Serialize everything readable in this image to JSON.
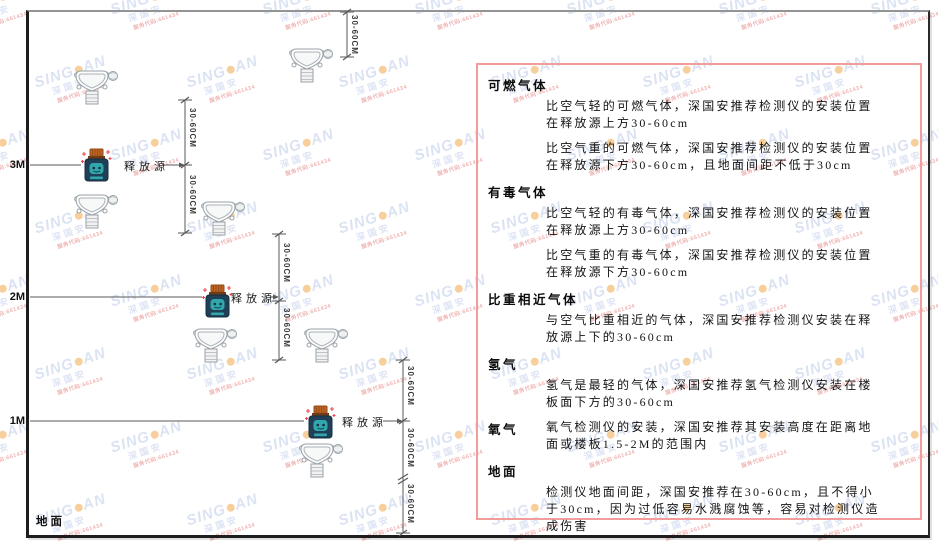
{
  "watermark": {
    "brand_left": "SING",
    "brand_right": "AN",
    "company": "深国安",
    "code": "服务代码:661434"
  },
  "icons": {
    "detector": "gas-detector-icon",
    "source": "release-source-icon",
    "sparkles": "red-sparkle-marks"
  },
  "scale": {
    "m3": "3M",
    "m2": "2M",
    "m1": "1M"
  },
  "labels": {
    "ground": "地面",
    "source": "释放源",
    "dim": "30-60CM"
  },
  "panel": {
    "sections": [
      {
        "heading": "可燃气体",
        "paragraphs": [
          "比空气轻的可燃气体，深国安推荐检测仪的安装位置在释放源上方30-60cm",
          "比空气重的可燃气体，深国安推荐检测仪的安装位置在释放源下方30-60cm，且地面间距不低于30cm"
        ]
      },
      {
        "heading": "有毒气体",
        "paragraphs": [
          "比空气轻的有毒气体，深国安推荐检测仪的安装位置在释放源上方30-60cm",
          "比空气重的有毒气体，深国安推荐检测仪的安装位置在释放源下方30-60cm"
        ]
      },
      {
        "heading": "比重相近气体",
        "paragraphs": [
          "与空气比重相近的气体，深国安推荐检测仪安装在释放源上下的30-60cm"
        ]
      },
      {
        "heading": "氢气",
        "paragraphs": [
          "氢气是最轻的气体，深国安推荐氢气检测仪安装在楼板面下方的30-60cm"
        ]
      },
      {
        "heading": "氧气",
        "inline": true,
        "paragraphs": [
          "氧气检测仪的安装，深国安推荐其安装高度在距离地面或楼板1.5-2M的范围内"
        ]
      },
      {
        "heading": "地面",
        "paragraphs": [
          "检测仪地面间距，深国安推荐在30-60cm，且不得小于30cm，因为过低容易水溅腐蚀等，容易对检测仪造成伤害"
        ]
      }
    ]
  }
}
